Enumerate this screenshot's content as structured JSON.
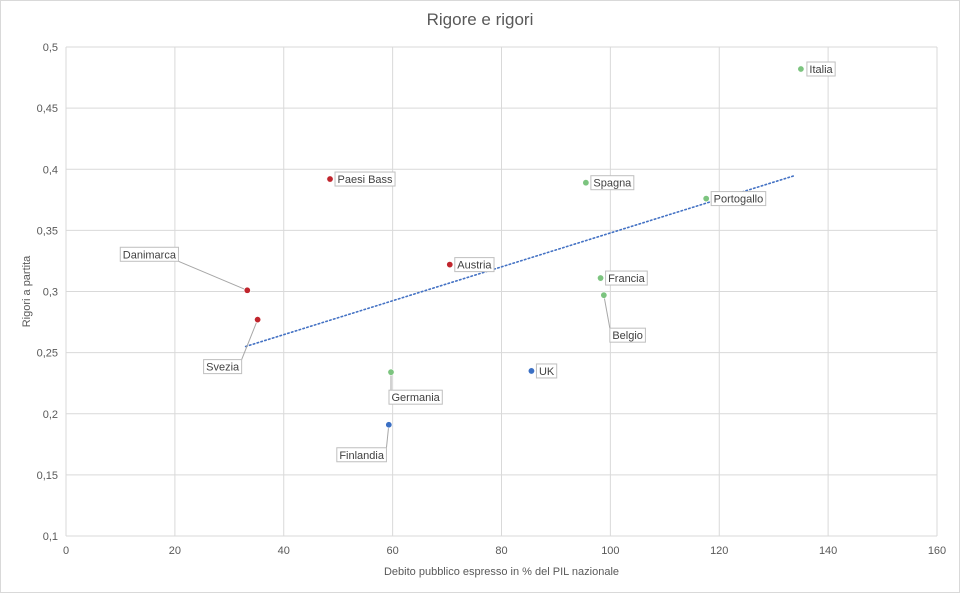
{
  "chart_data": {
    "type": "scatter",
    "title": "Rigore e rigori",
    "xlabel": "Debito pubblico espresso in % del PIL nazionale",
    "ylabel": "Rigori a partita",
    "xlim": [
      0,
      160
    ],
    "ylim": [
      0.1,
      0.5
    ],
    "x_ticks": [
      0,
      20,
      40,
      60,
      80,
      100,
      120,
      140,
      160
    ],
    "y_ticks": [
      "0,1",
      "0,15",
      "0,2",
      "0,25",
      "0,3",
      "0,35",
      "0,4",
      "0,45",
      "0,5"
    ],
    "grid": true,
    "legend": "none",
    "colors": {
      "red": "#c0252d",
      "green": "#7cc47f",
      "blue": "#3a6fc4",
      "trend": "#4472c4",
      "grid": "#d9d9d9"
    },
    "points": [
      {
        "label": "Italia",
        "x": 135.0,
        "y": 0.482,
        "color": "green"
      },
      {
        "label": "Paesi Bass",
        "x": 48.5,
        "y": 0.392,
        "color": "red"
      },
      {
        "label": "Spagna",
        "x": 95.5,
        "y": 0.389,
        "color": "green"
      },
      {
        "label": "Portogallo",
        "x": 117.6,
        "y": 0.376,
        "color": "green"
      },
      {
        "label": "Austria",
        "x": 70.5,
        "y": 0.322,
        "color": "red"
      },
      {
        "label": "Francia",
        "x": 98.2,
        "y": 0.311,
        "color": "green"
      },
      {
        "label": "Danimarca",
        "x": 33.3,
        "y": 0.301,
        "color": "red"
      },
      {
        "label": "Belgio",
        "x": 98.8,
        "y": 0.297,
        "color": "green"
      },
      {
        "label": "Svezia",
        "x": 35.2,
        "y": 0.277,
        "color": "red"
      },
      {
        "label": "Germania",
        "x": 59.7,
        "y": 0.234,
        "color": "green"
      },
      {
        "label": "UK",
        "x": 85.5,
        "y": 0.235,
        "color": "blue"
      },
      {
        "label": "Finlandia",
        "x": 59.3,
        "y": 0.191,
        "color": "blue"
      }
    ],
    "trendline": {
      "x": [
        33.0,
        134.0
      ],
      "y": [
        0.255,
        0.395
      ],
      "style": "dotted"
    }
  }
}
